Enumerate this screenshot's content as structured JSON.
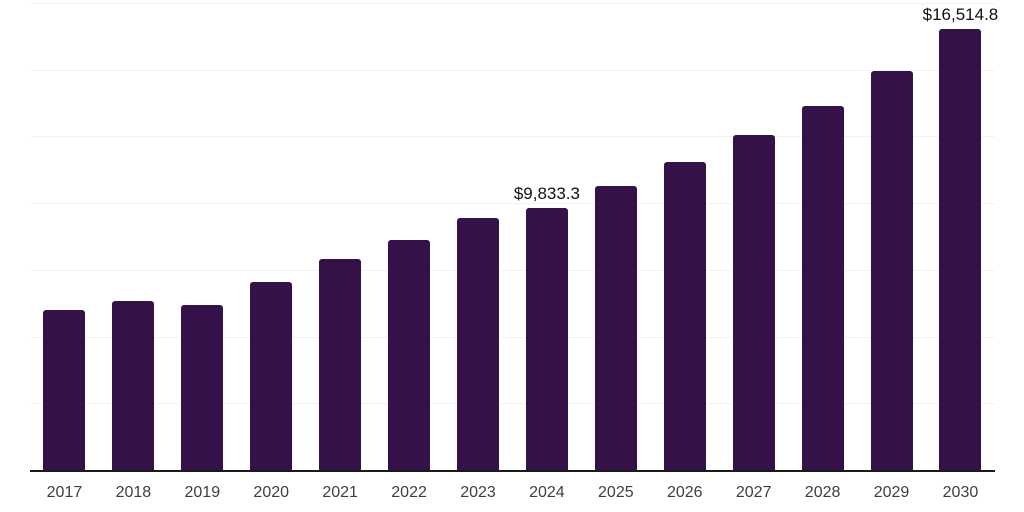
{
  "chart_data": {
    "type": "bar",
    "title": "",
    "xlabel": "",
    "ylabel": "",
    "categories": [
      "2017",
      "2018",
      "2019",
      "2020",
      "2021",
      "2022",
      "2023",
      "2024",
      "2025",
      "2026",
      "2027",
      "2028",
      "2029",
      "2030"
    ],
    "values": [
      6010,
      6330,
      6200,
      7050,
      7900,
      8610,
      9460,
      9833.3,
      10650,
      11540,
      12560,
      13640,
      14960,
      16514.8
    ],
    "value_labels": {
      "2024": "$9,833.3",
      "2030": "$16,514.8"
    },
    "ylim": [
      0,
      17500
    ],
    "gridline_interval": 2500,
    "grid": true,
    "legend": false,
    "colors": {
      "bar": "#341149",
      "gridline": "#f2f2f2",
      "axis_line": "#1a1a1a",
      "tick_label": "#3e3e3e",
      "value_label": "#111111"
    }
  }
}
